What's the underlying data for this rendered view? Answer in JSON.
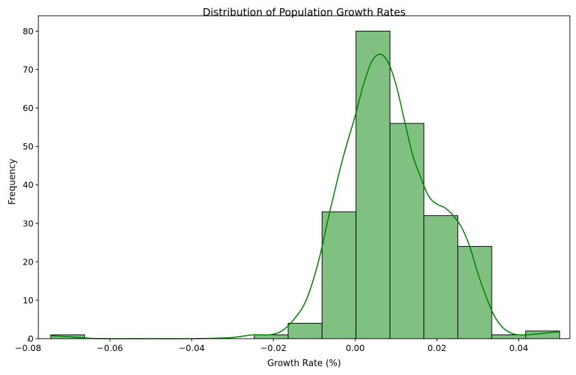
{
  "chart_data": {
    "type": "bar",
    "title": "Distribution of Population Growth Rates",
    "xlabel": "Growth Rate (%)",
    "ylabel": "Frequency",
    "xlim": [
      -0.0775,
      0.0525
    ],
    "ylim": [
      0,
      84
    ],
    "xticks": [
      -0.08,
      -0.06,
      -0.04,
      -0.02,
      0.0,
      0.02,
      0.04
    ],
    "xtick_labels": [
      "−0.08",
      "−0.06",
      "−0.04",
      "−0.02",
      "0.00",
      "0.02",
      "0.04"
    ],
    "yticks": [
      0,
      10,
      20,
      30,
      40,
      50,
      60,
      70,
      80
    ],
    "ytick_labels": [
      "0",
      "10",
      "20",
      "30",
      "40",
      "50",
      "60",
      "70",
      "80"
    ],
    "bins": [
      -0.0745,
      -0.0662,
      -0.0579,
      -0.0496,
      -0.0413,
      -0.033,
      -0.0247,
      -0.0164,
      -0.0081,
      0.0002,
      0.0085,
      0.0168,
      0.0251,
      0.0334,
      0.0417,
      0.05
    ],
    "values": [
      1,
      0,
      0,
      0,
      0,
      0,
      1,
      4,
      33,
      80,
      56,
      32,
      24,
      1,
      2,
      0
    ],
    "bar_color": "#80c080",
    "bar_edge_color": "#000000",
    "kde": {
      "x": [
        -0.0745,
        -0.07,
        -0.065,
        -0.06,
        -0.05,
        -0.04,
        -0.035,
        -0.03,
        -0.025,
        -0.021,
        -0.018,
        -0.015,
        -0.012,
        -0.009,
        -0.006,
        -0.003,
        0.0,
        0.002,
        0.004,
        0.006,
        0.008,
        0.01,
        0.012,
        0.014,
        0.016,
        0.018,
        0.02,
        0.022,
        0.024,
        0.026,
        0.028,
        0.03,
        0.032,
        0.034,
        0.036,
        0.038,
        0.04,
        0.042,
        0.044,
        0.047,
        0.05
      ],
      "y": [
        0.8,
        0.5,
        0.1,
        0.0,
        0.0,
        0.0,
        0.1,
        0.3,
        1.0,
        1.0,
        2.0,
        5.0,
        10.0,
        20.0,
        34.0,
        47.0,
        58.0,
        66.0,
        72.0,
        74.0,
        72.0,
        66.0,
        57.0,
        48.0,
        42.0,
        37.0,
        35.0,
        34.0,
        32.0,
        29.0,
        24.0,
        17.0,
        11.0,
        6.0,
        3.0,
        1.5,
        1.0,
        1.0,
        1.2,
        1.5,
        1.8
      ],
      "color": "#008000"
    },
    "grid": false
  }
}
